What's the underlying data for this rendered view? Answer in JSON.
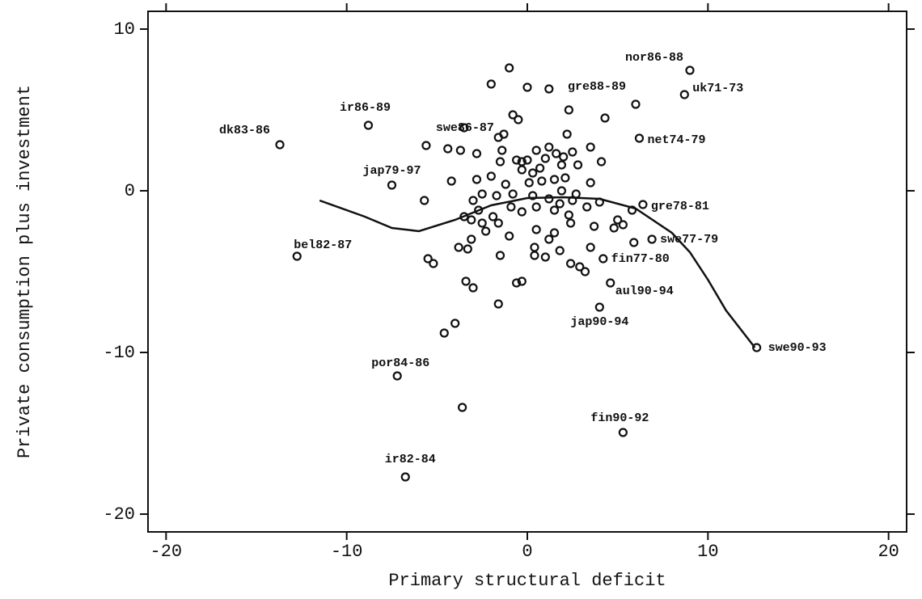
{
  "chart_data": {
    "type": "scatter",
    "xlabel": "Primary structural deficit",
    "ylabel": "Private consumption plus investment",
    "xlim": [
      -21,
      21
    ],
    "ylim": [
      -21.1,
      11.1
    ],
    "xticks": [
      -20,
      -10,
      0,
      10,
      20
    ],
    "yticks": [
      -20,
      -10,
      0,
      10
    ],
    "grid": false,
    "color": "#111111",
    "points": {
      "x": [
        9.0,
        8.7,
        6.0,
        6.2,
        -8.8,
        -13.7,
        -5.6,
        -7.5,
        6.4,
        6.9,
        -12.75,
        4.2,
        4.6,
        4.0,
        12.7,
        -7.2,
        5.3,
        -6.75,
        -1.0,
        -2.0,
        0.0,
        1.2,
        -0.8,
        -0.5,
        2.3,
        4.3,
        -1.3,
        -1.6,
        2.2,
        -3.5,
        -4.4,
        -3.7,
        -2.8,
        -1.4,
        -0.3,
        0.0,
        0.5,
        1.2,
        1.6,
        2.0,
        2.5,
        3.5,
        4.1,
        -1.5,
        -0.6,
        1.0,
        1.9,
        2.8,
        -4.2,
        -2.0,
        -0.3,
        0.3,
        0.7,
        1.5,
        2.1,
        3.5,
        -2.8,
        -1.2,
        0.1,
        0.8,
        1.9,
        2.7,
        -5.7,
        -3.0,
        -2.5,
        -1.7,
        -0.8,
        0.3,
        1.2,
        1.8,
        2.5,
        4.0,
        -2.7,
        -1.9,
        -0.9,
        -0.3,
        0.5,
        1.5,
        2.3,
        3.3,
        5.0,
        5.8,
        -3.5,
        -3.1,
        -2.5,
        -1.6,
        -1.0,
        0.5,
        1.5,
        2.4,
        3.7,
        4.8,
        5.3,
        -3.8,
        -3.1,
        -1.5,
        0.4,
        1.2,
        1.8,
        2.9,
        3.5,
        -3.3,
        -2.3,
        0.4,
        1.0,
        2.4,
        3.2,
        5.9,
        -5.5,
        -5.2,
        -3.4,
        -3.0,
        -0.6,
        -0.3,
        -1.6,
        -4.0,
        -4.6,
        -3.6
      ],
      "y": [
        7.45,
        5.95,
        5.35,
        3.25,
        4.05,
        2.85,
        2.8,
        0.35,
        -0.85,
        -3.0,
        -4.05,
        -4.2,
        -5.7,
        -7.2,
        -9.7,
        -11.45,
        -14.95,
        -17.7,
        7.6,
        6.6,
        6.4,
        6.3,
        4.7,
        4.4,
        5.0,
        4.5,
        3.5,
        3.3,
        3.5,
        3.9,
        2.6,
        2.5,
        2.3,
        2.5,
        1.8,
        1.9,
        2.5,
        2.7,
        2.3,
        2.1,
        2.4,
        2.7,
        1.8,
        1.8,
        1.9,
        2.0,
        1.6,
        1.6,
        0.6,
        0.9,
        1.3,
        1.1,
        1.4,
        0.7,
        0.8,
        0.5,
        0.7,
        0.4,
        0.5,
        0.6,
        0.0,
        -0.2,
        -0.6,
        -0.6,
        -0.2,
        -0.3,
        -0.2,
        -0.3,
        -0.5,
        -0.8,
        -0.6,
        -0.7,
        -1.2,
        -1.6,
        -1.0,
        -1.3,
        -1.0,
        -1.2,
        -1.5,
        -1.0,
        -1.8,
        -1.2,
        -1.6,
        -1.8,
        -2.0,
        -2.0,
        -2.8,
        -2.4,
        -2.6,
        -2.0,
        -2.2,
        -2.3,
        -2.1,
        -3.5,
        -3.0,
        -4.0,
        -3.5,
        -3.0,
        -3.7,
        -4.7,
        -3.5,
        -3.6,
        -2.5,
        -4.0,
        -4.1,
        -4.5,
        -5.0,
        -3.2,
        -4.2,
        -4.5,
        -5.6,
        -6.0,
        -5.7,
        -5.6,
        -7.0,
        -8.2,
        -8.8,
        -13.4
      ],
      "labels": [
        "nor86-88",
        "uk71-73",
        "gre88-89",
        "net74-79",
        "ir86-89",
        "dk83-86",
        "swe86-87",
        "jap79-97",
        "gre78-81",
        "swe77-79",
        "bel82-87",
        "fin77-80",
        "aul90-94",
        "jap90-94",
        "swe90-93",
        "por84-86",
        "fin90-92",
        "ir82-84"
      ]
    },
    "smooth": {
      "x": [
        -11.5,
        -9,
        -7.5,
        -6,
        -4,
        -2,
        0,
        2,
        4,
        6,
        8,
        9,
        10,
        11,
        12.6
      ],
      "y": [
        -0.6,
        -1.6,
        -2.3,
        -2.5,
        -1.8,
        -0.9,
        -0.45,
        -0.4,
        -0.5,
        -1.1,
        -2.6,
        -3.8,
        -5.5,
        -7.4,
        -9.7
      ]
    }
  }
}
